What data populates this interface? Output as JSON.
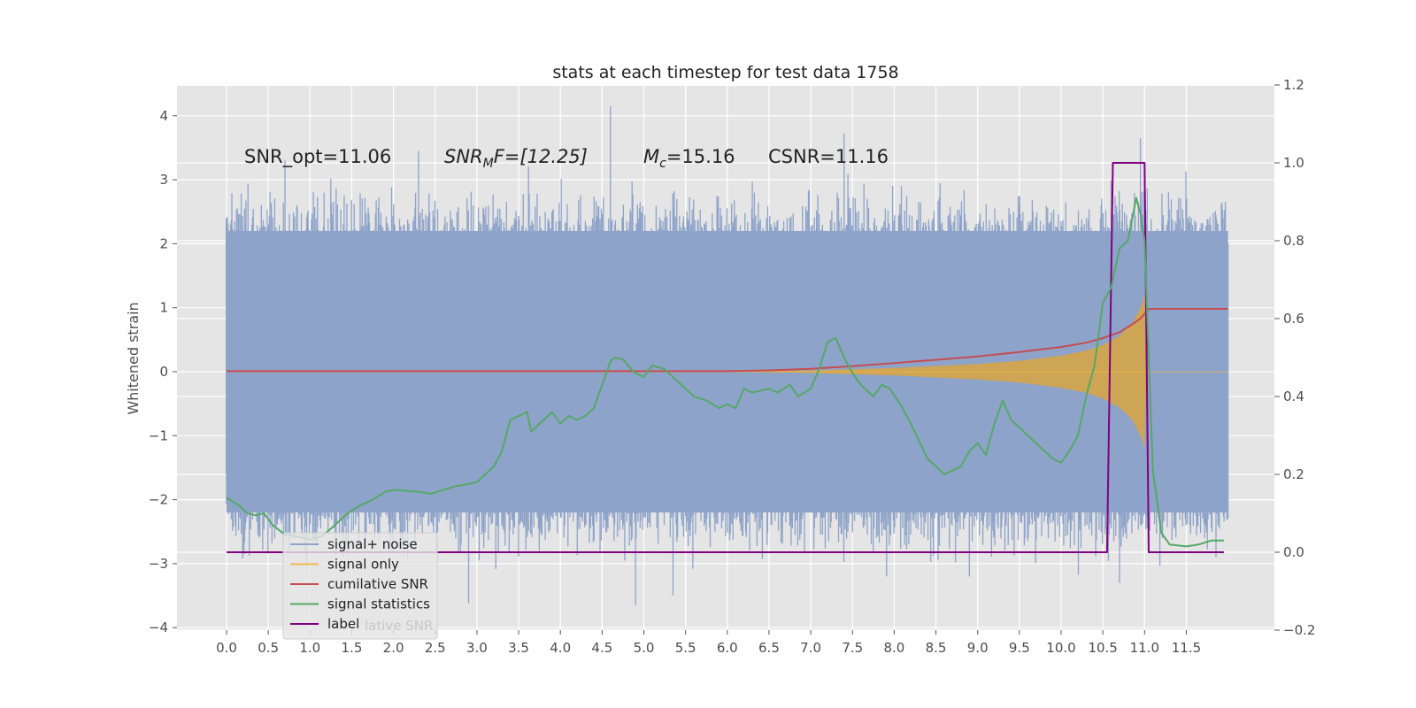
{
  "chart_data": {
    "type": "line",
    "title": "stats at each timestep for test data 1758",
    "ylabel": "Whitened strain",
    "xlabel": "",
    "xlim": [
      -0.6,
      12.3
    ],
    "ylim": [
      -4.1,
      4.45
    ],
    "y2lim": [
      -0.2,
      1.2
    ],
    "grid": true,
    "legend_placement": "lower-left",
    "x_ticks": [
      "0.0",
      "0.5",
      "1.0",
      "1.5",
      "2.0",
      "2.5",
      "3.0",
      "3.5",
      "4.0",
      "4.5",
      "5.0",
      "5.5",
      "6.0",
      "6.5",
      "7.0",
      "7.5",
      "8.0",
      "8.5",
      "9.0",
      "9.5",
      "10.0",
      "10.5",
      "11.0",
      "11.5"
    ],
    "y_ticks": [
      "4",
      "3",
      "2",
      "1",
      "0",
      "−1",
      "−2",
      "−3",
      "−4"
    ],
    "y2_ticks": [
      "1.2",
      "1.0",
      "0.8",
      "0.6",
      "0.4",
      "0.2",
      "0.0",
      "−0.2"
    ],
    "annotations": {
      "snr_opt": "SNR_opt=11.06",
      "snr_mf_main": "SNR",
      "snr_mf_sub": "M",
      "snr_mf_rest": "F=[12.25]",
      "mc_main": "M",
      "mc_sub": "c",
      "mc_rest": "=15.16",
      "csnr": "CSNR=11.16"
    },
    "legend": [
      {
        "label": "signal+ noise",
        "color": "#8ea3c9"
      },
      {
        "label": "signal only",
        "color": "#f2b94a"
      },
      {
        "label": "cumilative SNR",
        "color": "#c44e52"
      },
      {
        "label": "signal statistics",
        "color": "#55a868"
      },
      {
        "label": "label",
        "color": "#800080"
      }
    ],
    "legend_ghost_text": "lative SNR",
    "series": [
      {
        "name": "signal+ noise",
        "axis": "left",
        "color": "#8ea3c9",
        "x_range": [
          0.0,
          12.0
        ],
        "typical_band": [
          -2.2,
          2.2
        ],
        "extremes": [
          [
            4.6,
            4.15
          ],
          [
            10.95,
            3.65
          ],
          [
            7.4,
            3.72
          ],
          [
            2.9,
            -3.62
          ],
          [
            4.9,
            -3.65
          ],
          [
            0.7,
            3.3
          ],
          [
            2.3,
            3.45
          ],
          [
            8.9,
            -3.2
          ],
          [
            5.35,
            -3.5
          ],
          [
            10.7,
            -3.3
          ]
        ]
      },
      {
        "name": "signal only",
        "axis": "left",
        "color": "#f2b94a",
        "chirp_envelope": [
          [
            6.0,
            0.0
          ],
          [
            7.0,
            0.02
          ],
          [
            8.0,
            0.06
          ],
          [
            9.0,
            0.12
          ],
          [
            9.5,
            0.17
          ],
          [
            10.0,
            0.25
          ],
          [
            10.3,
            0.33
          ],
          [
            10.5,
            0.42
          ],
          [
            10.7,
            0.56
          ],
          [
            10.85,
            0.75
          ],
          [
            10.95,
            1.0
          ],
          [
            11.0,
            1.2
          ],
          [
            11.02,
            0.0
          ],
          [
            12.0,
            0.0
          ]
        ]
      },
      {
        "name": "cumilative SNR",
        "axis": "right",
        "color": "#c44e52",
        "x": [
          0.0,
          6.0,
          6.5,
          7.0,
          7.5,
          8.0,
          8.5,
          9.0,
          9.5,
          10.0,
          10.3,
          10.5,
          10.7,
          10.85,
          10.95,
          11.05,
          12.0
        ],
        "y": [
          0.465,
          0.465,
          0.467,
          0.471,
          0.478,
          0.486,
          0.494,
          0.503,
          0.514,
          0.527,
          0.538,
          0.55,
          0.565,
          0.585,
          0.6,
          0.625,
          0.625
        ]
      },
      {
        "name": "signal statistics",
        "axis": "right",
        "color": "#55a868",
        "x": [
          0.0,
          0.15,
          0.25,
          0.35,
          0.45,
          0.55,
          0.7,
          0.85,
          1.0,
          1.15,
          1.3,
          1.45,
          1.6,
          1.75,
          1.9,
          2.0,
          2.15,
          2.3,
          2.45,
          2.6,
          2.75,
          2.9,
          3.0,
          3.1,
          3.2,
          3.3,
          3.4,
          3.6,
          3.65,
          3.8,
          3.9,
          4.0,
          4.1,
          4.2,
          4.3,
          4.4,
          4.5,
          4.6,
          4.65,
          4.75,
          4.85,
          4.9,
          5.0,
          5.1,
          5.25,
          5.4,
          5.5,
          5.6,
          5.75,
          5.9,
          6.0,
          6.1,
          6.2,
          6.3,
          6.5,
          6.6,
          6.75,
          6.85,
          7.0,
          7.1,
          7.2,
          7.3,
          7.4,
          7.5,
          7.6,
          7.75,
          7.85,
          7.95,
          8.1,
          8.2,
          8.4,
          8.6,
          8.8,
          8.9,
          9.0,
          9.1,
          9.2,
          9.3,
          9.4,
          9.5,
          9.6,
          9.75,
          9.9,
          10.0,
          10.1,
          10.2,
          10.3,
          10.4,
          10.5,
          10.6,
          10.7,
          10.8,
          10.9,
          10.95,
          11.0,
          11.1,
          11.2,
          11.3,
          11.5,
          11.65,
          11.8,
          11.95
        ],
        "y": [
          0.14,
          0.12,
          0.1,
          0.095,
          0.1,
          0.07,
          0.045,
          0.04,
          0.032,
          0.042,
          0.07,
          0.1,
          0.12,
          0.135,
          0.155,
          0.16,
          0.158,
          0.155,
          0.15,
          0.16,
          0.17,
          0.175,
          0.18,
          0.2,
          0.22,
          0.26,
          0.34,
          0.36,
          0.31,
          0.34,
          0.36,
          0.33,
          0.35,
          0.34,
          0.35,
          0.37,
          0.43,
          0.49,
          0.5,
          0.495,
          0.47,
          0.46,
          0.45,
          0.48,
          0.47,
          0.44,
          0.42,
          0.4,
          0.39,
          0.37,
          0.38,
          0.37,
          0.42,
          0.41,
          0.42,
          0.41,
          0.43,
          0.4,
          0.42,
          0.47,
          0.54,
          0.55,
          0.5,
          0.46,
          0.43,
          0.4,
          0.43,
          0.42,
          0.37,
          0.33,
          0.24,
          0.2,
          0.22,
          0.26,
          0.28,
          0.25,
          0.33,
          0.39,
          0.34,
          0.32,
          0.3,
          0.27,
          0.24,
          0.23,
          0.26,
          0.3,
          0.4,
          0.48,
          0.64,
          0.68,
          0.78,
          0.8,
          0.91,
          0.87,
          0.8,
          0.21,
          0.05,
          0.02,
          0.015,
          0.02,
          0.03,
          0.03
        ]
      },
      {
        "name": "label",
        "axis": "right",
        "color": "#800080",
        "x": [
          0.0,
          10.55,
          10.62,
          11.0,
          11.05,
          11.95
        ],
        "y": [
          0.0,
          0.0,
          1.0,
          1.0,
          0.0,
          0.0
        ]
      }
    ]
  }
}
